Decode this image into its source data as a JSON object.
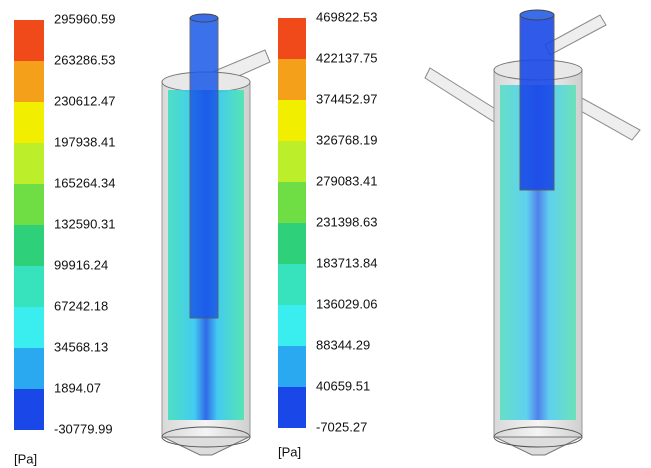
{
  "colorbars": [
    {
      "labels": [
        295960.59,
        263286.53,
        230612.47,
        197938.41,
        165264.34,
        132590.31,
        99916.24,
        67242.18,
        34568.13,
        1894.07,
        -30779.99
      ],
      "unit": "[Pa]",
      "colors": [
        "#f04a1a",
        "#f5a01a",
        "#f2ee00",
        "#bdee2a",
        "#6ede44",
        "#2fd07a",
        "#36e3bd",
        "#3aeef0",
        "#2aa8f0",
        "#1a48e8"
      ]
    },
    {
      "labels": [
        469822.53,
        422137.75,
        374452.97,
        326768.19,
        279083.41,
        231398.63,
        183713.84,
        136029.06,
        88344.29,
        40659.51,
        -7025.27
      ],
      "unit": "[Pa]",
      "colors": [
        "#f04a1a",
        "#f5a01a",
        "#f2ee00",
        "#bdee2a",
        "#6ede44",
        "#2fd07a",
        "#36e3bd",
        "#3aeef0",
        "#2aa8f0",
        "#1a48e8"
      ]
    }
  ]
}
